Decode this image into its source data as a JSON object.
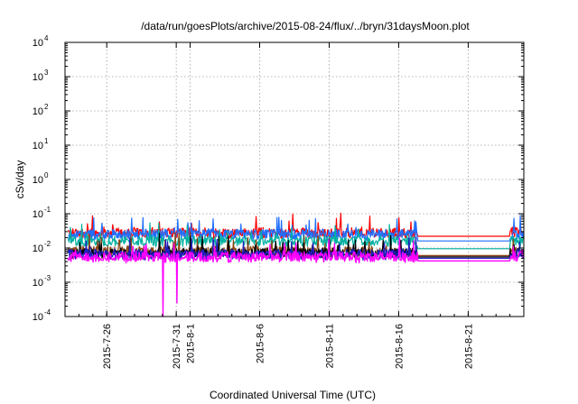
{
  "chart_data": {
    "type": "line",
    "title": "/data/run/goesPlots/archive/2015-08-24/flux/../bryn/31daysMoon.plot",
    "xlabel": "Coordinated Universal Time (UTC)",
    "ylabel": "cSv/day",
    "y_scale": "log",
    "ylim": [
      0.0001,
      10000
    ],
    "y_ticks": [
      {
        "base": "10",
        "exp": "-4"
      },
      {
        "base": "10",
        "exp": "-3"
      },
      {
        "base": "10",
        "exp": "-2"
      },
      {
        "base": "10",
        "exp": "-1"
      },
      {
        "base": "10",
        "exp": "0"
      },
      {
        "base": "10",
        "exp": "1"
      },
      {
        "base": "10",
        "exp": "2"
      },
      {
        "base": "10",
        "exp": "3"
      },
      {
        "base": "10",
        "exp": "4"
      }
    ],
    "xlim": [
      "2015-07-23",
      "2015-08-25"
    ],
    "x_ticks": [
      "2015-7-26",
      "2015-7-31",
      "2015-8-1",
      "2015-8-6",
      "2015-8-11",
      "2015-8-16",
      "2015-8-21"
    ],
    "grid": true,
    "data_gap": [
      "2015-08-17",
      "2015-08-24"
    ],
    "series": [
      {
        "color": "#ff0000",
        "typical": 0.028,
        "gap_level": 0.022,
        "dips": []
      },
      {
        "color": "#1f6fff",
        "typical": 0.025,
        "gap_level": 0.016,
        "dips": []
      },
      {
        "color": "#00b0a0",
        "typical": 0.016,
        "gap_level": 0.0095,
        "dips": []
      },
      {
        "color": "#8b4513",
        "typical": 0.008,
        "gap_level": 0.006,
        "dips": []
      },
      {
        "color": "#000000",
        "typical": 0.007,
        "gap_level": 0.0055,
        "dips": []
      },
      {
        "color": "#2020c0",
        "typical": 0.0065,
        "gap_level": 0.005,
        "dips": []
      },
      {
        "color": "#ff00ff",
        "typical": 0.0055,
        "gap_level": 0.0042,
        "dips": [
          {
            "date": "2015-07-30",
            "value": 0.0001
          },
          {
            "date": "2015-07-31",
            "value": 0.00025
          }
        ]
      }
    ]
  }
}
